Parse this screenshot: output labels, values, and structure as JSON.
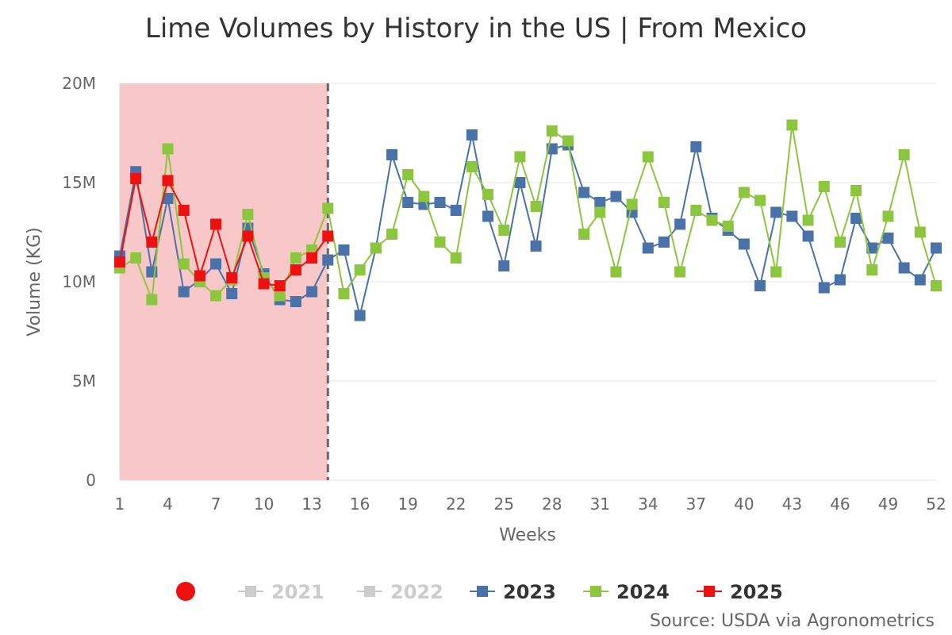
{
  "chart_data": {
    "type": "line",
    "title": "Lime Volumes by History in the US | From Mexico",
    "xlabel": "Weeks",
    "ylabel": "Volume (KG)",
    "ylim": [
      0,
      20000000
    ],
    "xlim": [
      1,
      52
    ],
    "y_ticks": [
      "0",
      "5M",
      "10M",
      "15M",
      "20M"
    ],
    "y_tick_values": [
      0,
      5000000,
      10000000,
      15000000,
      20000000
    ],
    "x_ticks": [
      "1",
      "4",
      "7",
      "10",
      "13",
      "16",
      "19",
      "22",
      "25",
      "28",
      "31",
      "34",
      "37",
      "40",
      "43",
      "46",
      "49",
      "52"
    ],
    "x_tick_values": [
      1,
      4,
      7,
      10,
      13,
      16,
      19,
      22,
      25,
      28,
      31,
      34,
      37,
      40,
      43,
      46,
      49,
      52
    ],
    "current_week": 14,
    "grid": "horizontal",
    "legend_position": "bottom",
    "series": [
      {
        "name": "2023",
        "color": "#4a72a8",
        "marker": "square",
        "visible": true,
        "x": [
          1,
          2,
          3,
          4,
          5,
          6,
          7,
          8,
          9,
          10,
          11,
          12,
          13,
          14,
          15,
          16,
          17,
          18,
          19,
          20,
          21,
          22,
          23,
          24,
          25,
          26,
          27,
          28,
          29,
          30,
          31,
          32,
          33,
          34,
          35,
          36,
          37,
          38,
          39,
          40,
          41,
          42,
          43,
          44,
          45,
          46,
          47,
          48,
          49,
          50,
          51,
          52
        ],
        "values": [
          11300000,
          15550000,
          10500000,
          14200000,
          9500000,
          10100000,
          10900000,
          9400000,
          12700000,
          10400000,
          9100000,
          9000000,
          9500000,
          11100000,
          11600000,
          8300000,
          11700000,
          16400000,
          14000000,
          13900000,
          14000000,
          13600000,
          17400000,
          13300000,
          10800000,
          15000000,
          11800000,
          16700000,
          16900000,
          14500000,
          14000000,
          14300000,
          13500000,
          11700000,
          12000000,
          12900000,
          16800000,
          13200000,
          12600000,
          11900000,
          9800000,
          13500000,
          13300000,
          12300000,
          9700000,
          10100000,
          13200000,
          11700000,
          12200000,
          10700000,
          10100000,
          11700000
        ]
      },
      {
        "name": "2024",
        "color": "#8cc63f",
        "marker": "square",
        "visible": true,
        "x": [
          1,
          2,
          3,
          4,
          5,
          6,
          7,
          8,
          9,
          10,
          11,
          12,
          13,
          14,
          15,
          16,
          17,
          18,
          19,
          20,
          21,
          22,
          23,
          24,
          25,
          26,
          27,
          28,
          29,
          30,
          31,
          32,
          33,
          34,
          35,
          36,
          37,
          38,
          39,
          40,
          41,
          42,
          43,
          44,
          45,
          46,
          47,
          48,
          49,
          50,
          51,
          52
        ],
        "values": [
          10700000,
          11200000,
          9100000,
          16700000,
          10900000,
          10000000,
          9300000,
          10100000,
          13400000,
          10200000,
          9300000,
          11200000,
          11600000,
          13700000,
          9400000,
          10600000,
          11700000,
          12400000,
          15400000,
          14300000,
          12000000,
          11200000,
          15800000,
          14400000,
          12600000,
          16300000,
          13800000,
          17600000,
          17100000,
          12400000,
          13500000,
          10500000,
          13900000,
          16300000,
          14000000,
          10500000,
          13600000,
          13100000,
          12800000,
          14500000,
          14100000,
          10500000,
          17900000,
          13100000,
          14800000,
          12000000,
          14600000,
          10600000,
          13300000,
          16400000,
          12500000,
          9800000
        ]
      },
      {
        "name": "2025",
        "color": "#ee1111",
        "marker": "square",
        "visible": true,
        "x": [
          1,
          2,
          3,
          4,
          5,
          6,
          7,
          8,
          9,
          10,
          11,
          12,
          13,
          14
        ],
        "values": [
          11000000,
          15200000,
          12000000,
          15100000,
          13600000,
          10300000,
          12900000,
          10200000,
          12300000,
          9900000,
          9800000,
          10600000,
          11200000,
          12300000
        ]
      },
      {
        "name": "2021",
        "color": "#cccccc",
        "marker": "square",
        "visible": false,
        "x": [],
        "values": []
      },
      {
        "name": "2022",
        "color": "#cccccc",
        "marker": "square",
        "visible": false,
        "x": [],
        "values": []
      }
    ],
    "legend_order": [
      "2021",
      "2022",
      "2023",
      "2024",
      "2025"
    ],
    "legend_marker_color": "#ee1111"
  },
  "source_text": "Source: USDA via Agronometrics"
}
